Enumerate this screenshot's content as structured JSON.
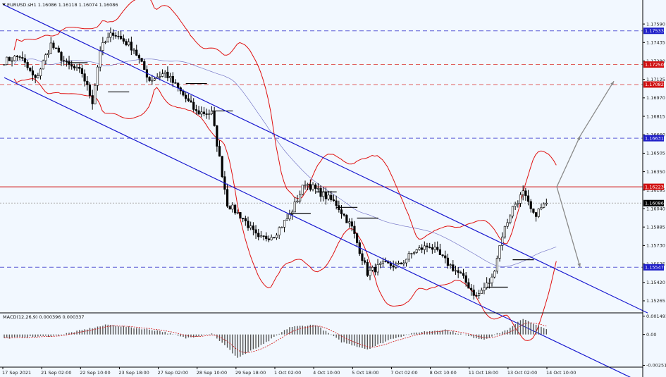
{
  "chart_data": [
    {
      "type": "candlestick",
      "title": "EURUSD.sH1  1.16086 1.16118 1.16074 1.16086",
      "symbol": "EURUSD.s",
      "timeframe": "H1",
      "ohlc_current": [
        1.16086,
        1.16118,
        1.16074,
        1.16086
      ],
      "y_ticks": [
        1.1759,
        1.17435,
        1.1728,
        1.17125,
        1.1697,
        1.16815,
        1.1666,
        1.16505,
        1.1635,
        1.16195,
        1.1604,
        1.15885,
        1.1573,
        1.15575,
        1.1542,
        1.15265
      ],
      "y_tick_labels": [
        "1.17590",
        "1.17435",
        "1.17280",
        "1.17125",
        "1.16970",
        "1.16815",
        "1.16660",
        "1.16505",
        "1.16350",
        "1.16195",
        "1.16040",
        "1.15885",
        "1.15730",
        "1.15575",
        "1.15420",
        "1.15265"
      ],
      "ylim": [
        1.1517,
        1.1778
      ],
      "x_tick_labels": [
        "17 Sep 2021",
        "21 Sep 02:00",
        "22 Sep 10:00",
        "23 Sep 18:00",
        "27 Sep 02:00",
        "28 Sep 10:00",
        "29 Sep 18:00",
        "1 Oct 02:00",
        "4 Oct 10:00",
        "5 Oct 18:00",
        "7 Oct 02:00",
        "8 Oct 10:00",
        "11 Oct 18:00",
        "13 Oct 02:00",
        "14 Oct 10:00"
      ],
      "grid": false,
      "close_series_anchors": [
        {
          "bar": 0,
          "price": 1.1728
        },
        {
          "bar": 6,
          "price": 1.1732
        },
        {
          "bar": 12,
          "price": 1.1712
        },
        {
          "bar": 18,
          "price": 1.1742
        },
        {
          "bar": 24,
          "price": 1.1725
        },
        {
          "bar": 30,
          "price": 1.1718
        },
        {
          "bar": 34,
          "price": 1.1694
        },
        {
          "bar": 37,
          "price": 1.1738
        },
        {
          "bar": 42,
          "price": 1.1752
        },
        {
          "bar": 50,
          "price": 1.1738
        },
        {
          "bar": 56,
          "price": 1.1712
        },
        {
          "bar": 62,
          "price": 1.1718
        },
        {
          "bar": 68,
          "price": 1.1702
        },
        {
          "bar": 74,
          "price": 1.1685
        },
        {
          "bar": 80,
          "price": 1.1684
        },
        {
          "bar": 86,
          "price": 1.1608
        },
        {
          "bar": 92,
          "price": 1.1596
        },
        {
          "bar": 98,
          "price": 1.1578
        },
        {
          "bar": 104,
          "price": 1.1582
        },
        {
          "bar": 110,
          "price": 1.1598
        },
        {
          "bar": 116,
          "price": 1.1626
        },
        {
          "bar": 122,
          "price": 1.1617
        },
        {
          "bar": 128,
          "price": 1.1608
        },
        {
          "bar": 134,
          "price": 1.1588
        },
        {
          "bar": 140,
          "price": 1.155
        },
        {
          "bar": 146,
          "price": 1.1557
        },
        {
          "bar": 152,
          "price": 1.1556
        },
        {
          "bar": 158,
          "price": 1.1568
        },
        {
          "bar": 164,
          "price": 1.1573
        },
        {
          "bar": 170,
          "price": 1.156
        },
        {
          "bar": 176,
          "price": 1.1548
        },
        {
          "bar": 182,
          "price": 1.153
        },
        {
          "bar": 188,
          "price": 1.1545
        },
        {
          "bar": 192,
          "price": 1.1582
        },
        {
          "bar": 196,
          "price": 1.1605
        },
        {
          "bar": 200,
          "price": 1.1617
        },
        {
          "bar": 204,
          "price": 1.1598
        },
        {
          "bar": 209,
          "price": 1.16086
        }
      ],
      "bar_count": 210,
      "horizontal_levels": [
        {
          "price": 1.17533,
          "label": "1.17533",
          "style": "dashed",
          "color": "#5a5ad6",
          "tag_color": "#1e1ec8"
        },
        {
          "price": 1.1725,
          "label": "1.17250",
          "style": "dashed",
          "color": "#e06060",
          "tag_color": "#d01010"
        },
        {
          "price": 1.17082,
          "label": "1.17082",
          "style": "dashed",
          "color": "#e06060",
          "tag_color": "#d01010"
        },
        {
          "price": 1.16631,
          "label": "1.16631",
          "style": "dashed",
          "color": "#5a5ad6",
          "tag_color": "#1e1ec8"
        },
        {
          "price": 1.16223,
          "label": "1.16223",
          "style": "solid",
          "color": "#d01010",
          "tag_color": "#d01010"
        },
        {
          "price": 1.16086,
          "label": "1.16086",
          "style": "dotted",
          "color": "#b0b0b0",
          "tag_color": "#000000"
        },
        {
          "price": 1.15547,
          "label": "1.15547",
          "style": "dashed",
          "color": "#5a5ad6",
          "tag_color": "#1e1ec8"
        }
      ],
      "channel": {
        "upper": [
          {
            "bar": 0,
            "price": 1.1775
          },
          {
            "bar": 210,
            "price": 1.1556
          }
        ],
        "lower": [
          {
            "bar": 0,
            "price": 1.1714
          },
          {
            "bar": 210,
            "price": 1.1495
          }
        ],
        "color": "#1a1ad0"
      },
      "projections": [
        {
          "from": {
            "bar": 213,
            "price": 1.16223
          },
          "to": {
            "bar": 222,
            "price": 1.1665
          }
        },
        {
          "from": {
            "bar": 222,
            "price": 1.1665
          },
          "to": {
            "bar": 235,
            "price": 1.1711
          }
        },
        {
          "from": {
            "bar": 213,
            "price": 1.16223
          },
          "to": {
            "bar": 222,
            "price": 1.15547
          }
        }
      ],
      "indicators": [
        "Bollinger Bands",
        "Moving Average"
      ]
    },
    {
      "type": "histogram",
      "title": "MACD(12,26,9) 0.000396 0.000337",
      "indicator": "MACD",
      "params": [
        12,
        26,
        9
      ],
      "values_current": [
        0.000396,
        0.000337
      ],
      "y_ticks": [
        0.001491,
        0.0,
        -0.00251
      ],
      "y_tick_labels": [
        "0.001491",
        "0.00",
        "-0.00251"
      ],
      "ylim": [
        -0.0026,
        0.0017
      ],
      "histogram_anchors": [
        {
          "bar": 0,
          "value": -0.0003
        },
        {
          "bar": 20,
          "value": -0.0001
        },
        {
          "bar": 40,
          "value": 0.0008
        },
        {
          "bar": 60,
          "value": 0.0003
        },
        {
          "bar": 70,
          "value": -0.0003
        },
        {
          "bar": 80,
          "value": 0.0001
        },
        {
          "bar": 90,
          "value": -0.0019
        },
        {
          "bar": 100,
          "value": -0.0008
        },
        {
          "bar": 110,
          "value": 0.0006
        },
        {
          "bar": 120,
          "value": 0.0008
        },
        {
          "bar": 130,
          "value": -0.0006
        },
        {
          "bar": 140,
          "value": -0.0012
        },
        {
          "bar": 150,
          "value": -0.0003
        },
        {
          "bar": 160,
          "value": 0.0002
        },
        {
          "bar": 170,
          "value": 0.0004
        },
        {
          "bar": 180,
          "value": -0.0002
        },
        {
          "bar": 185,
          "value": -0.0004
        },
        {
          "bar": 195,
          "value": 0.0005
        },
        {
          "bar": 200,
          "value": 0.0013
        },
        {
          "bar": 209,
          "value": 0.0004
        }
      ],
      "signal_color": "#d01010",
      "bar_color": "#555555"
    }
  ]
}
